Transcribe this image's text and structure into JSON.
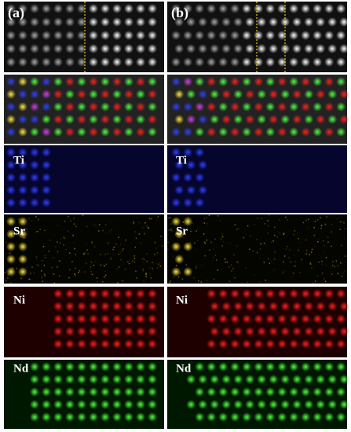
{
  "columns": [
    {
      "label": "(a)",
      "maps": [
        "Ti",
        "Sr",
        "Ni",
        "Nd"
      ]
    },
    {
      "label": "(b)",
      "maps": [
        "Ti",
        "Sr",
        "Ni",
        "Nd"
      ]
    }
  ]
}
